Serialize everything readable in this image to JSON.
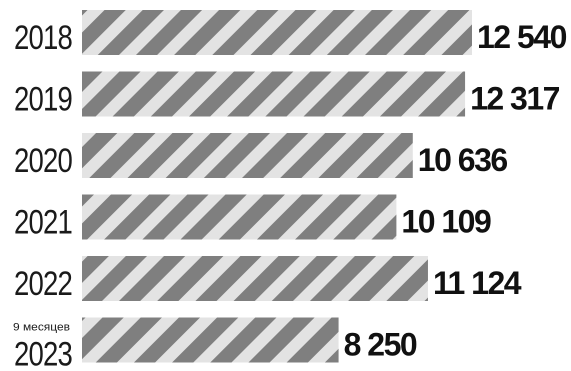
{
  "chart_data": {
    "type": "bar",
    "orientation": "horizontal",
    "categories": [
      "2018",
      "2019",
      "2020",
      "2021",
      "2022",
      "2023"
    ],
    "category_sublabels": [
      "",
      "",
      "",
      "",
      "",
      "9 месяцев"
    ],
    "values": [
      12540,
      12317,
      10636,
      10109,
      11124,
      8250
    ],
    "value_labels": [
      "12 540",
      "12 317",
      "10 636",
      "10 109",
      "11 124",
      "8 250"
    ],
    "title": "",
    "xlabel": "",
    "ylabel": "",
    "xlim": [
      0,
      12540
    ],
    "grid": false,
    "legend": "none",
    "colors": {
      "stripe_dark": "#7f7f7f",
      "stripe_light": "#e3e3e3",
      "text": "#111111"
    }
  }
}
